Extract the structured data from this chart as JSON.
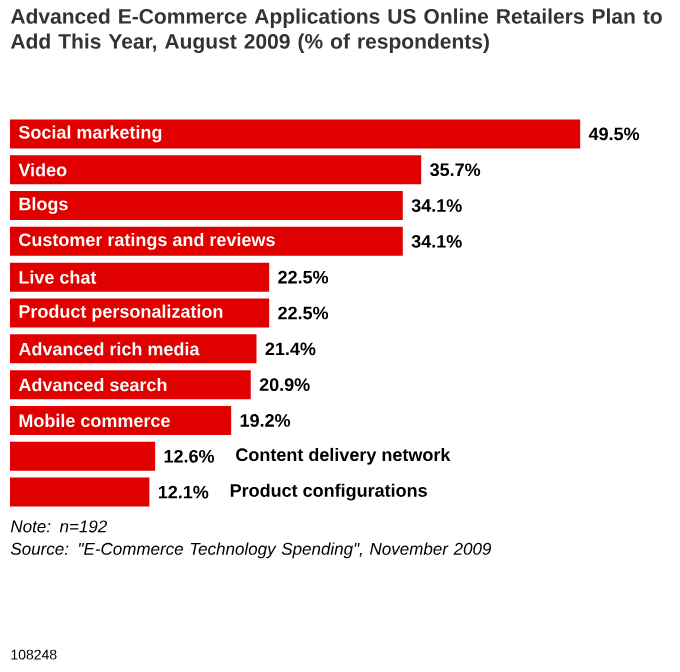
{
  "chart_data": {
    "type": "bar",
    "orientation": "horizontal",
    "title": "Advanced E-Commerce Applications US Online Retailers Plan to Add This Year, August 2009 (% of respondents)",
    "categories": [
      "Social marketing",
      "Video",
      "Blogs",
      "Customer ratings and reviews",
      "Live chat",
      "Product personalization",
      "Advanced rich media",
      "Advanced search",
      "Mobile commerce",
      "Content delivery network",
      "Product configurations"
    ],
    "values": [
      49.5,
      35.7,
      34.1,
      34.1,
      22.5,
      22.5,
      21.4,
      20.9,
      19.2,
      12.6,
      12.1
    ],
    "value_labels": [
      "49.5%",
      "35.7%",
      "34.1%",
      "34.1%",
      "22.5%",
      "22.5%",
      "21.4%",
      "20.9%",
      "19.2%",
      "12.6%",
      "12.1%"
    ],
    "color": "#e00000",
    "annotations": [
      "Note: n=192",
      "Source: \"*E-Commerce Technology Spending*\", November 2009",
      "108248"
    ]
  }
}
